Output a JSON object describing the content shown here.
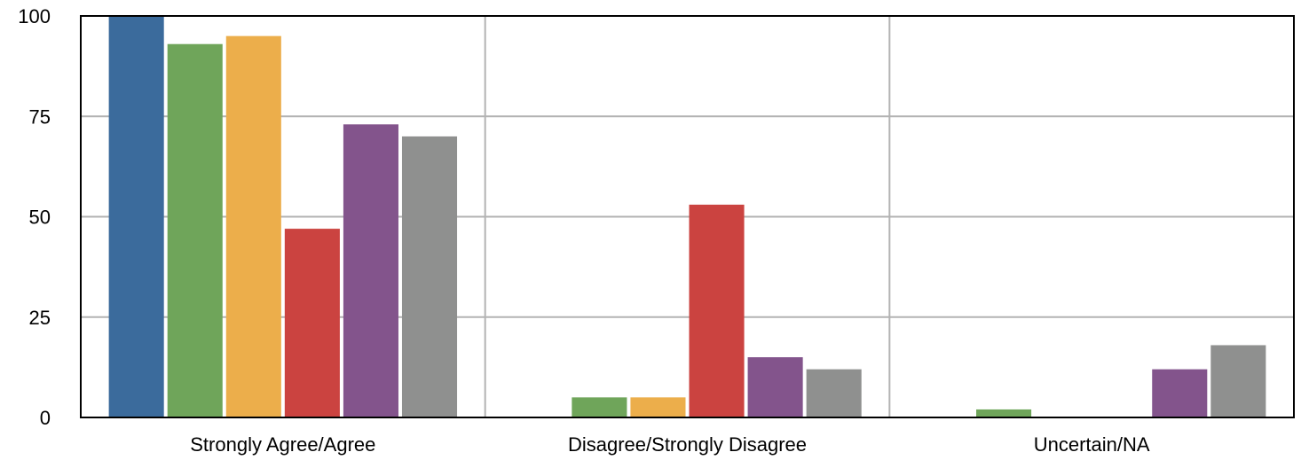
{
  "chart_data": {
    "type": "bar",
    "title": "",
    "xlabel": "",
    "ylabel": "",
    "ylim": [
      0,
      100
    ],
    "yticks": [
      0,
      25,
      50,
      75,
      100
    ],
    "grid": true,
    "legend": "none",
    "categories": [
      "Strongly Agree/Agree",
      "Disagree/Strongly Disagree",
      "Uncertain/NA"
    ],
    "series": [
      {
        "color": "#3b6b9c",
        "values": [
          100,
          0,
          0
        ]
      },
      {
        "color": "#6fa55a",
        "values": [
          93,
          5,
          2
        ]
      },
      {
        "color": "#ecae4b",
        "values": [
          95,
          5,
          0
        ]
      },
      {
        "color": "#cb4340",
        "values": [
          47,
          53,
          0
        ]
      },
      {
        "color": "#83548c",
        "values": [
          73,
          15,
          12
        ]
      },
      {
        "color": "#8f908f",
        "values": [
          70,
          12,
          18
        ]
      }
    ]
  }
}
